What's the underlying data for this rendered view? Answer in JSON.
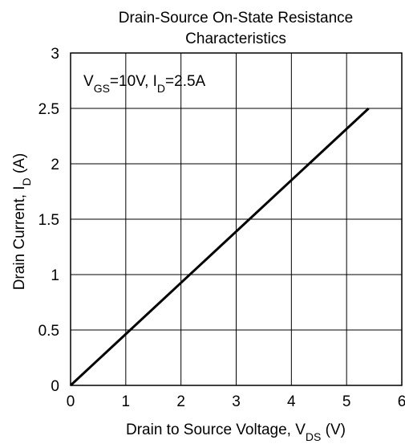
{
  "chart_data": {
    "type": "line",
    "title": [
      "Drain-Source On-State Resistance",
      "Characteristics"
    ],
    "annotation": {
      "parts": [
        {
          "text": "V",
          "sub": false
        },
        {
          "text": "GS",
          "sub": true
        },
        {
          "text": "=10V, I",
          "sub": false
        },
        {
          "text": "D",
          "sub": true
        },
        {
          "text": "=2.5A",
          "sub": false
        }
      ]
    },
    "xlabel": {
      "parts": [
        {
          "text": "Drain to Source Voltage, V",
          "sub": false
        },
        {
          "text": "DS",
          "sub": true
        },
        {
          "text": " (V)",
          "sub": false
        }
      ]
    },
    "ylabel": {
      "parts": [
        {
          "text": "Drain Current, I",
          "sub": false
        },
        {
          "text": "D",
          "sub": true
        },
        {
          "text": " (A)",
          "sub": false
        }
      ]
    },
    "xlim": [
      0,
      6
    ],
    "ylim": [
      0,
      3
    ],
    "xticks": [
      0,
      1,
      2,
      3,
      4,
      5,
      6
    ],
    "yticks": [
      0,
      0.5,
      1,
      1.5,
      2,
      2.5,
      3
    ],
    "grid": true,
    "series": [
      {
        "color": "#000000",
        "points": [
          [
            0,
            0
          ],
          [
            5.4,
            2.5
          ]
        ]
      }
    ]
  }
}
